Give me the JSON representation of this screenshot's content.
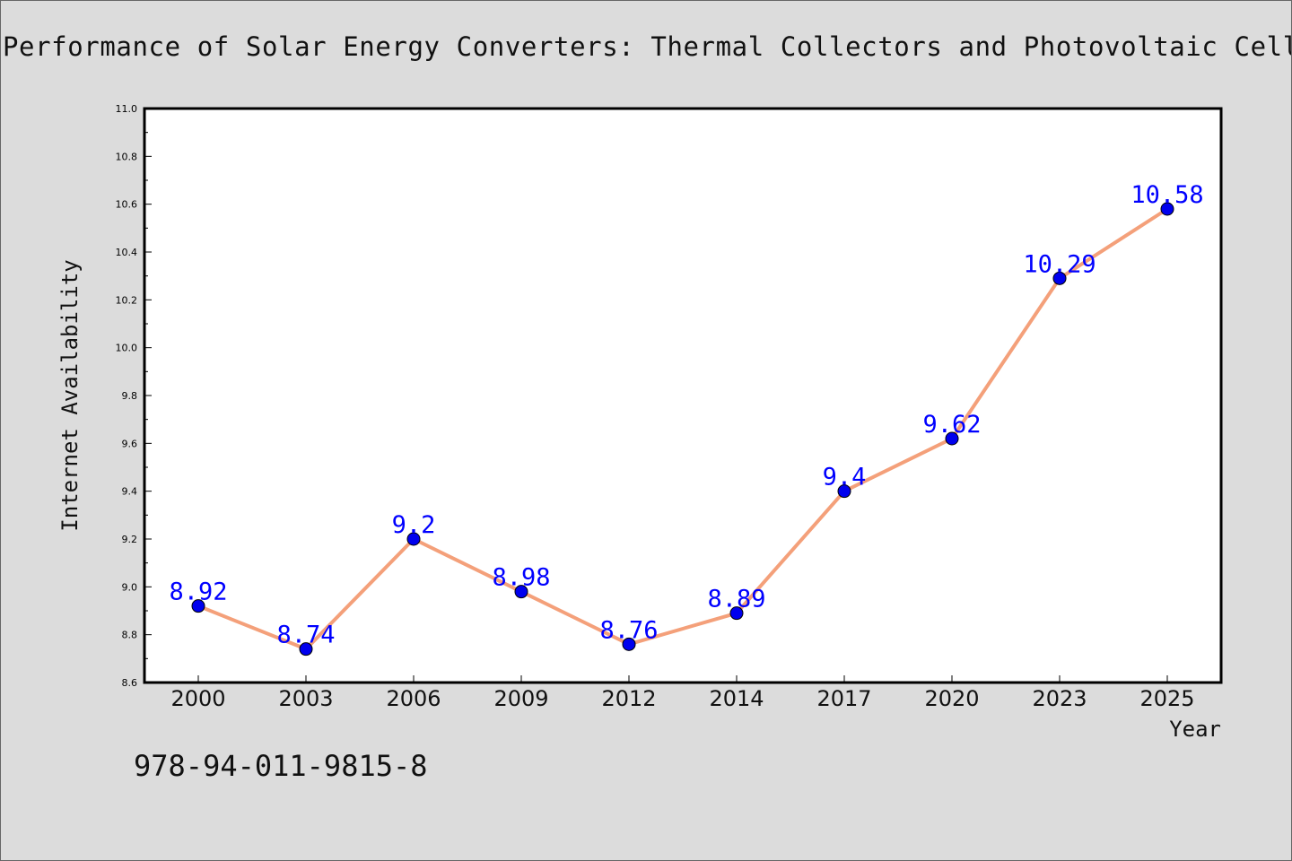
{
  "title": "Performance of Solar Energy Converters: Thermal Collectors and Photovoltaic Cells",
  "footer_code": "978-94-011-9815-8",
  "chart_data": {
    "type": "line",
    "title": "Performance of Solar Energy Converters: Thermal Collectors and Photovoltaic Cells",
    "xlabel": "Year",
    "ylabel": "Internet Availability",
    "categories": [
      "2000",
      "2003",
      "2006",
      "2009",
      "2012",
      "2014",
      "2017",
      "2020",
      "2023",
      "2025"
    ],
    "series": [
      {
        "values": [
          8.92,
          8.74,
          9.2,
          8.98,
          8.76,
          8.89,
          9.4,
          9.62,
          10.29,
          10.58
        ],
        "data_labels": [
          "8.92",
          "8.74",
          "9.2",
          "8.98",
          "8.76",
          "8.89",
          "9.4",
          "9.62",
          "10.29",
          "10.58"
        ],
        "line_color": "#f4a07a",
        "marker_color": "#0000ee",
        "label_color": "#0000ff"
      }
    ],
    "ylim": [
      8.6,
      11.0
    ],
    "yticks": [
      "8.6",
      "8.8",
      "9.0",
      "9.2",
      "9.4",
      "9.6",
      "9.8",
      "10.0",
      "10.2",
      "10.4",
      "10.6",
      "10.8",
      "11.0"
    ],
    "grid": false,
    "legend": "none",
    "background_color": "#dcdcdc",
    "plot_background_color": "#ffffff"
  }
}
